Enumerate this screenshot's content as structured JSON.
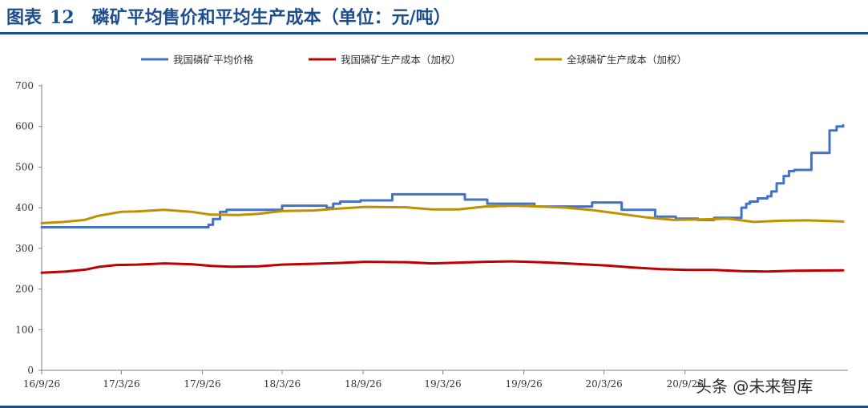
{
  "figure": {
    "label": "图表",
    "number": "12",
    "title": "磷矿平均售价和平均生产成本（单位：元/吨）"
  },
  "watermark": "头条 @未来智库",
  "colors": {
    "rule": "#1f4e8c",
    "series": [
      "#4472c4",
      "#c00000",
      "#bf9000"
    ]
  },
  "chart_data": {
    "type": "line",
    "title": "磷矿平均售价和平均生产成本（单位：元/吨）",
    "xlabel": "",
    "ylabel": "",
    "ylim": [
      0,
      700
    ],
    "yticks": [
      0,
      100,
      200,
      300,
      400,
      500,
      600,
      700
    ],
    "xlim": [
      "2016-09-26",
      "2021-09-20"
    ],
    "xtick_labels": [
      "16/9/26",
      "17/3/26",
      "17/9/26",
      "18/3/26",
      "18/9/26",
      "19/3/26",
      "19/9/26",
      "20/3/26",
      "20/9/26"
    ],
    "xtick_dates": [
      "2016-09-26",
      "2017-03-26",
      "2017-09-26",
      "2018-03-26",
      "2018-09-26",
      "2019-03-26",
      "2019-09-26",
      "2020-03-26",
      "2020-09-26"
    ],
    "grid": false,
    "legend_position": "top",
    "series": [
      {
        "name": "我国磷矿平均价格",
        "step": true,
        "points": [
          [
            "2016-09-26",
            352
          ],
          [
            "2017-09-26",
            352
          ],
          [
            "2017-10-10",
            358
          ],
          [
            "2017-10-20",
            372
          ],
          [
            "2017-11-05",
            390
          ],
          [
            "2017-11-20",
            395
          ],
          [
            "2018-03-26",
            405
          ],
          [
            "2018-07-05",
            400
          ],
          [
            "2018-07-20",
            410
          ],
          [
            "2018-08-05",
            415
          ],
          [
            "2018-09-20",
            418
          ],
          [
            "2018-12-01",
            433
          ],
          [
            "2019-05-15",
            420
          ],
          [
            "2019-07-05",
            410
          ],
          [
            "2019-10-20",
            403
          ],
          [
            "2020-02-28",
            413
          ],
          [
            "2020-05-05",
            395
          ],
          [
            "2020-07-20",
            378
          ],
          [
            "2020-09-05",
            373
          ],
          [
            "2020-10-25",
            370
          ],
          [
            "2020-12-01",
            375
          ],
          [
            "2021-01-25",
            375
          ],
          [
            "2021-02-01",
            400
          ],
          [
            "2021-02-12",
            410
          ],
          [
            "2021-02-20",
            415
          ],
          [
            "2021-03-10",
            423
          ],
          [
            "2021-04-01",
            428
          ],
          [
            "2021-04-10",
            440
          ],
          [
            "2021-04-22",
            460
          ],
          [
            "2021-05-08",
            478
          ],
          [
            "2021-05-20",
            490
          ],
          [
            "2021-06-01",
            493
          ],
          [
            "2021-07-10",
            535
          ],
          [
            "2021-08-20",
            590
          ],
          [
            "2021-09-05",
            600
          ],
          [
            "2021-09-20",
            603
          ]
        ]
      },
      {
        "name": "我国磷矿生产成本（加权）",
        "step": false,
        "points": [
          [
            "2016-09-26",
            240
          ],
          [
            "2016-11-20",
            243
          ],
          [
            "2017-01-05",
            248
          ],
          [
            "2017-02-05",
            255
          ],
          [
            "2017-03-15",
            259
          ],
          [
            "2017-05-01",
            260
          ],
          [
            "2017-07-01",
            263
          ],
          [
            "2017-09-01",
            261
          ],
          [
            "2017-10-15",
            257
          ],
          [
            "2017-12-01",
            255
          ],
          [
            "2018-02-01",
            256
          ],
          [
            "2018-03-26",
            260
          ],
          [
            "2018-06-01",
            262
          ],
          [
            "2018-08-01",
            264
          ],
          [
            "2018-10-01",
            267
          ],
          [
            "2019-01-01",
            266
          ],
          [
            "2019-03-01",
            263
          ],
          [
            "2019-05-01",
            265
          ],
          [
            "2019-07-01",
            267
          ],
          [
            "2019-09-01",
            268
          ],
          [
            "2019-11-01",
            266
          ],
          [
            "2020-01-01",
            263
          ],
          [
            "2020-04-01",
            258
          ],
          [
            "2020-06-01",
            253
          ],
          [
            "2020-08-01",
            249
          ],
          [
            "2020-10-01",
            247
          ],
          [
            "2020-12-01",
            247
          ],
          [
            "2021-02-01",
            244
          ],
          [
            "2021-04-01",
            243
          ],
          [
            "2021-06-01",
            245
          ],
          [
            "2021-09-20",
            246
          ]
        ]
      },
      {
        "name": "全球磷矿生产成本（加权）",
        "step": false,
        "points": [
          [
            "2016-09-26",
            362
          ],
          [
            "2016-11-15",
            365
          ],
          [
            "2017-01-01",
            370
          ],
          [
            "2017-02-01",
            380
          ],
          [
            "2017-03-26",
            390
          ],
          [
            "2017-05-01",
            391
          ],
          [
            "2017-07-01",
            395
          ],
          [
            "2017-09-01",
            390
          ],
          [
            "2017-10-15",
            383
          ],
          [
            "2017-12-15",
            382
          ],
          [
            "2018-02-01",
            385
          ],
          [
            "2018-03-26",
            392
          ],
          [
            "2018-06-01",
            393
          ],
          [
            "2018-08-01",
            398
          ],
          [
            "2018-10-01",
            402
          ],
          [
            "2019-01-01",
            401
          ],
          [
            "2019-03-01",
            396
          ],
          [
            "2019-05-01",
            396
          ],
          [
            "2019-07-01",
            403
          ],
          [
            "2019-09-01",
            405
          ],
          [
            "2019-11-01",
            403
          ],
          [
            "2020-01-01",
            400
          ],
          [
            "2020-03-01",
            394
          ],
          [
            "2020-05-01",
            385
          ],
          [
            "2020-07-01",
            376
          ],
          [
            "2020-09-01",
            370
          ],
          [
            "2020-11-01",
            371
          ],
          [
            "2021-01-01",
            373
          ],
          [
            "2021-03-01",
            365
          ],
          [
            "2021-05-01",
            368
          ],
          [
            "2021-07-01",
            369
          ],
          [
            "2021-09-20",
            366
          ]
        ]
      }
    ]
  }
}
